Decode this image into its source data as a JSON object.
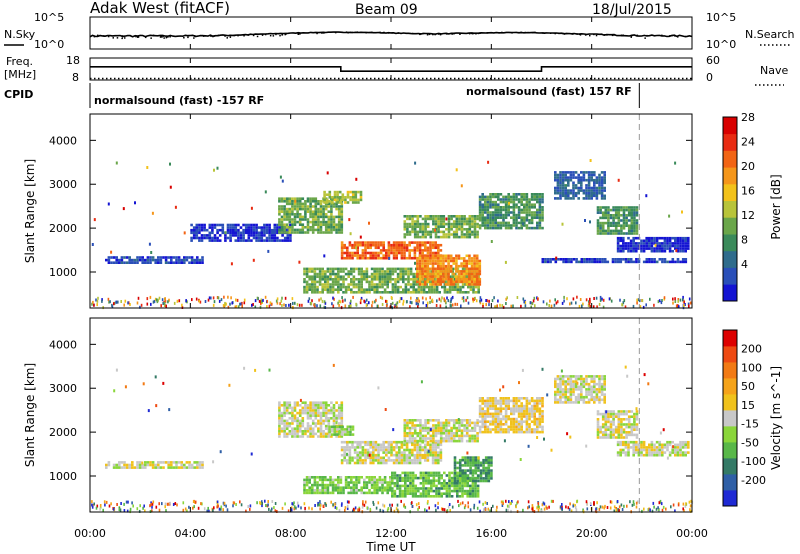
{
  "header": {
    "station": "Adak West (fitACF)",
    "beam": "Beam 09",
    "date": "18/Jul/2015"
  },
  "left_labels": {
    "nsky": "N.Sky",
    "freq_line1": "Freq.",
    "freq_line2": "[MHz]",
    "cpid": "CPID"
  },
  "right_labels": {
    "nsearch": "N.Search",
    "nave": "Nave"
  },
  "noise_axis": {
    "top": "10^5",
    "bottom": "10^0"
  },
  "freq_axis": {
    "left_top": "18",
    "left_bottom": "8",
    "right_top": "60",
    "right_bottom": "0"
  },
  "cpid_panel": {
    "mode1": "normalsound (fast) -157 RF",
    "mode2": "normalsound (fast) 157 RF"
  },
  "panel_ylabel": "Slant Range [km]",
  "xlabel": "Time UT",
  "x_ticks": [
    "00:00",
    "04:00",
    "08:00",
    "12:00",
    "16:00",
    "20:00",
    "00:00"
  ],
  "y_ticks": [
    "1000",
    "2000",
    "3000",
    "4000"
  ],
  "power_colorbar": {
    "label": "Power [dB]",
    "ticks": [
      "4",
      "8",
      "12",
      "16",
      "20",
      "24",
      "28"
    ],
    "colors": [
      "#1414d2",
      "#2a4fb8",
      "#2f6c8c",
      "#3a8a5a",
      "#6aa64a",
      "#b8c43a",
      "#f3c21a",
      "#f5961a",
      "#f26414",
      "#e82b12",
      "#d80000"
    ]
  },
  "velocity_colorbar": {
    "label": "Velocity [m s^-1]",
    "ticks": [
      "200",
      "100",
      "50",
      "15",
      "-15",
      "-50",
      "-100",
      "-200"
    ],
    "colors": [
      "#1f2ad4",
      "#2f5fa6",
      "#347a66",
      "#58b748",
      "#8ad63a",
      "#c8c8c8",
      "#f0c21c",
      "#f5a31a",
      "#f27a14",
      "#ee4a12",
      "#dd0000"
    ]
  },
  "chart_data": [
    {
      "type": "line",
      "title": "N.Sky / N.Search",
      "x_range_hours": [
        0,
        24
      ],
      "yscale": "log",
      "ylim": [
        1,
        100000
      ]
    },
    {
      "type": "line",
      "title": "Freq. / Nave",
      "x_range_hours": [
        0,
        24
      ],
      "series": [
        {
          "name": "Freq.",
          "x": [
            0,
            10,
            10,
            18,
            18,
            24
          ],
          "y": [
            14,
            14,
            12,
            12,
            14,
            14
          ]
        },
        {
          "name": "Nave",
          "x": [
            0,
            24
          ],
          "y": [
            4,
            4
          ]
        }
      ]
    },
    {
      "type": "heatmap",
      "title": "Power [dB]",
      "xlabel": "Time UT",
      "ylabel": "Slant Range [km]",
      "x_range_hours": [
        0,
        24
      ],
      "ylim": [
        180,
        4600
      ],
      "value_range": [
        3,
        30
      ],
      "regions": [
        {
          "t0": 0.6,
          "t1": 4.5,
          "r0": 1200,
          "r1": 1360,
          "v": 6
        },
        {
          "t0": 4.0,
          "t1": 8.0,
          "r0": 1700,
          "r1": 2100,
          "v": 5
        },
        {
          "t0": 7.5,
          "t1": 10.0,
          "r0": 1900,
          "r1": 2700,
          "v": 14
        },
        {
          "t0": 9.3,
          "t1": 10.8,
          "r0": 2600,
          "r1": 2850,
          "v": 16
        },
        {
          "t0": 10.0,
          "t1": 14.0,
          "r0": 1300,
          "r1": 1700,
          "v": 24
        },
        {
          "t0": 12.5,
          "t1": 15.5,
          "r0": 1800,
          "r1": 2300,
          "v": 14
        },
        {
          "t0": 8.5,
          "t1": 15.5,
          "r0": 550,
          "r1": 1100,
          "v": 14
        },
        {
          "t0": 13.0,
          "t1": 15.5,
          "r0": 700,
          "r1": 1400,
          "v": 22
        },
        {
          "t0": 15.5,
          "t1": 18.0,
          "r0": 2000,
          "r1": 2800,
          "v": 12
        },
        {
          "t0": 18.5,
          "t1": 20.5,
          "r0": 2700,
          "r1": 3300,
          "v": 8
        },
        {
          "t0": 20.2,
          "t1": 21.8,
          "r0": 1900,
          "r1": 2500,
          "v": 12
        },
        {
          "t0": 21.0,
          "t1": 23.8,
          "r0": 1500,
          "r1": 1800,
          "v": 5
        },
        {
          "t0": 18.0,
          "t1": 23.8,
          "r0": 1220,
          "r1": 1320,
          "v": 6
        }
      ]
    },
    {
      "type": "heatmap",
      "title": "Velocity [m s^-1]",
      "xlabel": "Time UT",
      "ylabel": "Slant Range [km]",
      "x_range_hours": [
        0,
        24
      ],
      "ylim": [
        180,
        4600
      ],
      "value_range": [
        -250,
        250
      ],
      "regions": [
        {
          "t0": 0.6,
          "t1": 4.5,
          "r0": 1220,
          "r1": 1340,
          "v": 0
        },
        {
          "t0": 7.5,
          "t1": 10.0,
          "r0": 1900,
          "r1": 2700,
          "v": 0
        },
        {
          "t0": 9.5,
          "t1": 10.5,
          "r0": 1950,
          "r1": 2150,
          "v": -50
        },
        {
          "t0": 10.0,
          "t1": 14.0,
          "r0": 1300,
          "r1": 1800,
          "v": 0
        },
        {
          "t0": 12.5,
          "t1": 15.5,
          "r0": 1800,
          "r1": 2300,
          "v": 0
        },
        {
          "t0": 8.5,
          "t1": 12.0,
          "r0": 600,
          "r1": 1000,
          "v": -60
        },
        {
          "t0": 12.0,
          "t1": 15.5,
          "r0": 550,
          "r1": 1100,
          "v": -80
        },
        {
          "t0": 14.5,
          "t1": 16.0,
          "r0": 900,
          "r1": 1450,
          "v": -110
        },
        {
          "t0": 15.5,
          "t1": 18.0,
          "r0": 2000,
          "r1": 2800,
          "v": 30
        },
        {
          "t0": 18.5,
          "t1": 20.5,
          "r0": 2700,
          "r1": 3300,
          "v": 0
        },
        {
          "t0": 20.2,
          "t1": 21.8,
          "r0": 1900,
          "r1": 2500,
          "v": 0
        },
        {
          "t0": 21.0,
          "t1": 23.8,
          "r0": 1500,
          "r1": 1800,
          "v": 0
        }
      ]
    }
  ]
}
